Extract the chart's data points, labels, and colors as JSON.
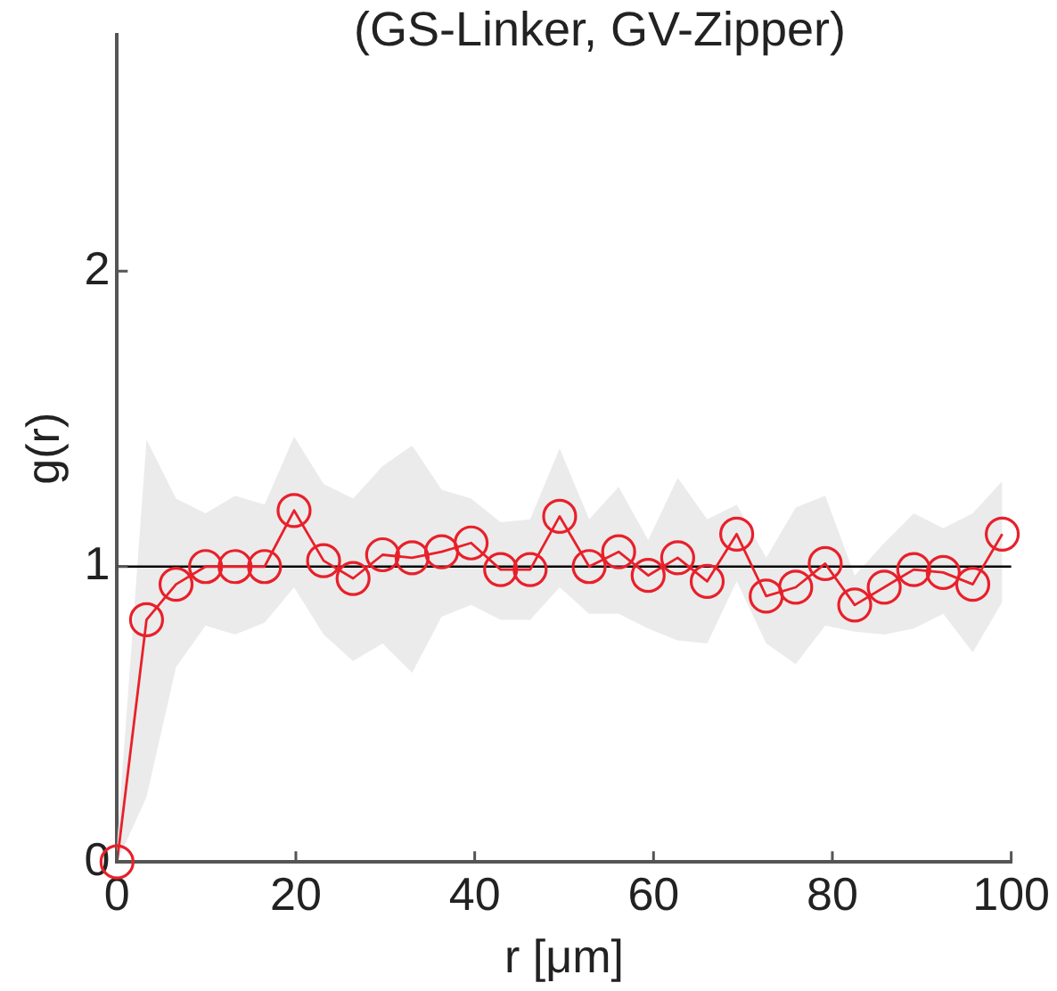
{
  "chart_data": {
    "type": "line",
    "title": "(GS-Linker, GV-Zipper)",
    "xlabel": "r [μm]",
    "ylabel": "g(r)",
    "x": [
      0,
      3.3,
      6.6,
      9.9,
      13.2,
      16.5,
      19.8,
      23.1,
      26.4,
      29.7,
      33,
      36.3,
      39.6,
      42.9,
      46.2,
      49.5,
      52.8,
      56.1,
      59.4,
      62.7,
      66,
      69.3,
      72.6,
      75.9,
      79.2,
      82.5,
      85.8,
      89.1,
      92.4,
      95.7,
      99
    ],
    "series": [
      {
        "color": "#e8202a",
        "values": [
          0,
          0.82,
          0.94,
          1.0,
          1.0,
          1.0,
          1.19,
          1.02,
          0.96,
          1.04,
          1.03,
          1.05,
          1.08,
          0.99,
          0.99,
          1.17,
          1.0,
          1.05,
          0.97,
          1.03,
          0.95,
          1.11,
          0.9,
          0.93,
          1.01,
          0.87,
          0.93,
          0.99,
          0.98,
          0.94,
          1.11
        ],
        "lower": [
          0,
          0.22,
          0.66,
          0.8,
          0.77,
          0.81,
          0.93,
          0.77,
          0.68,
          0.74,
          0.64,
          0.83,
          0.87,
          0.82,
          0.82,
          0.93,
          0.84,
          0.84,
          0.79,
          0.75,
          0.74,
          0.95,
          0.74,
          0.67,
          0.8,
          0.78,
          0.77,
          0.79,
          0.84,
          0.71,
          0.88
        ],
        "upper": [
          0.06,
          1.43,
          1.23,
          1.18,
          1.24,
          1.21,
          1.44,
          1.28,
          1.23,
          1.34,
          1.41,
          1.26,
          1.23,
          1.15,
          1.16,
          1.4,
          1.16,
          1.27,
          1.09,
          1.3,
          1.16,
          1.21,
          1.03,
          1.2,
          1.24,
          0.97,
          1.08,
          1.18,
          1.13,
          1.18,
          1.29
        ]
      }
    ],
    "xlim": [
      0,
      100
    ],
    "xticks": [
      0,
      20,
      40,
      60,
      80,
      100
    ],
    "ylim": [
      0,
      2.8
    ],
    "yticks": [
      0,
      1,
      2
    ],
    "ref_lines": [
      {
        "axis": "y",
        "value": 1,
        "color": "#000000"
      }
    ],
    "marker": "circle",
    "line_style": "solid",
    "grid": false,
    "legend": false
  }
}
